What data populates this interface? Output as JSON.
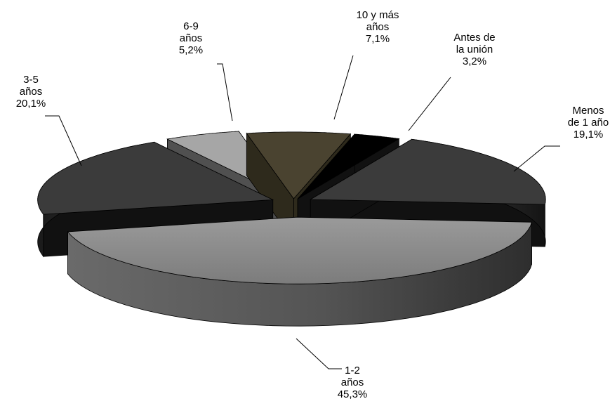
{
  "chart_data": {
    "type": "pie",
    "title": "",
    "slices": [
      {
        "label": [
          "Antes de",
          "la unión"
        ],
        "value": 3.2,
        "value_label": "3,2%",
        "color": "#000000"
      },
      {
        "label": [
          "Menos",
          "de 1 año"
        ],
        "value": 19.1,
        "value_label": "19,1%",
        "color": "#3b3b3b"
      },
      {
        "label": [
          "1-2",
          "años"
        ],
        "value": 45.3,
        "value_label": "45,3%",
        "color": "#8a8a8a"
      },
      {
        "label": [
          "3-5",
          "años"
        ],
        "value": 20.1,
        "value_label": "20,1%",
        "color": "#3b3b3b"
      },
      {
        "label": [
          "6-9",
          "años"
        ],
        "value": 5.2,
        "value_label": "5,2%",
        "color": "#a6a6a6"
      },
      {
        "label": [
          "10 y más",
          "años"
        ],
        "value": 7.1,
        "value_label": "7,1%",
        "color": "#4a4330"
      }
    ],
    "legend": "none",
    "exploded": true,
    "three_d": true
  }
}
